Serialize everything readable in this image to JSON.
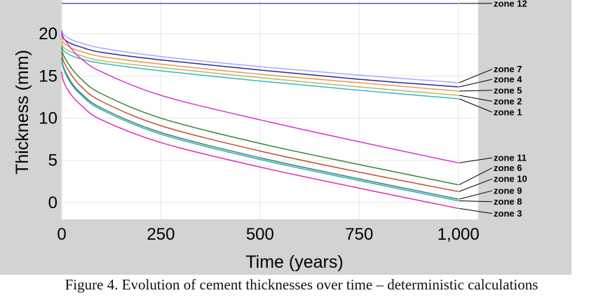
{
  "chart_data": {
    "type": "line",
    "title": "",
    "xlabel": "Time (years)",
    "ylabel": "Thickness (mm)",
    "xlim": [
      0,
      1050
    ],
    "ylim": [
      -2,
      24
    ],
    "grid": true,
    "x_ticks": [
      0,
      250,
      500,
      750,
      1000
    ],
    "x_tick_labels": [
      "0",
      "250",
      "500",
      "750",
      "1,000"
    ],
    "y_ticks": [
      0,
      5,
      10,
      15,
      20
    ],
    "y_tick_labels": [
      "0",
      "5",
      "10",
      "15",
      "20"
    ],
    "x": [
      0,
      5,
      25,
      50,
      100,
      250,
      500,
      750,
      1000
    ],
    "series": [
      {
        "name": "zone 12",
        "color": "#5050d8",
        "values": [
          23.6,
          23.6,
          23.6,
          23.6,
          23.6,
          23.6,
          23.6,
          23.6,
          23.6
        ]
      },
      {
        "name": "zone 7",
        "color": "#a8a8ff",
        "values": [
          20.5,
          19.9,
          19.3,
          18.9,
          18.3,
          17.3,
          16.1,
          15.1,
          14.2
        ]
      },
      {
        "name": "zone 4",
        "color": "#2a2a9a",
        "values": [
          20.0,
          19.4,
          18.8,
          18.4,
          17.8,
          16.9,
          15.7,
          14.6,
          13.7
        ]
      },
      {
        "name": "zone 5",
        "color": "#e89a3a",
        "values": [
          19.5,
          18.9,
          18.3,
          17.9,
          17.3,
          16.4,
          15.2,
          14.2,
          13.2
        ]
      },
      {
        "name": "zone 2",
        "color": "#b5b578",
        "values": [
          19.0,
          18.4,
          17.8,
          17.4,
          16.8,
          16.0,
          14.8,
          13.7,
          12.7
        ]
      },
      {
        "name": "zone 1",
        "color": "#38b8b8",
        "values": [
          18.6,
          18.0,
          17.4,
          17.0,
          16.5,
          15.6,
          14.4,
          13.3,
          12.3
        ]
      },
      {
        "name": "zone 11",
        "color": "#dd33cc",
        "values": [
          20.3,
          19.5,
          18.2,
          17.0,
          15.5,
          12.7,
          9.8,
          7.2,
          4.7
        ]
      },
      {
        "name": "zone 6",
        "color": "#2e8b2e",
        "values": [
          18.4,
          17.4,
          15.9,
          14.6,
          12.9,
          10.0,
          7.0,
          4.5,
          2.1
        ]
      },
      {
        "name": "zone 10",
        "color": "#c0522a",
        "values": [
          17.8,
          16.7,
          15.1,
          13.7,
          12.0,
          9.1,
          6.1,
          3.6,
          1.3
        ]
      },
      {
        "name": "zone 9",
        "color": "#308080",
        "values": [
          17.2,
          16.0,
          14.2,
          12.9,
          11.2,
          8.3,
          5.3,
          2.8,
          0.4
        ]
      },
      {
        "name": "zone 8",
        "color": "#30a8a8",
        "values": [
          17.0,
          15.8,
          14.0,
          12.7,
          11.0,
          8.1,
          5.1,
          2.6,
          0.2
        ]
      },
      {
        "name": "zone 3",
        "color": "#e02cb8",
        "values": [
          15.5,
          14.3,
          12.7,
          11.5,
          9.8,
          7.1,
          4.2,
          1.7,
          -0.7
        ]
      }
    ],
    "legend_labels": [
      {
        "name": "zone 12",
        "label_value": 23.6
      },
      {
        "name": "zone 7",
        "label_value": 15.8
      },
      {
        "name": "zone 4",
        "label_value": 14.6
      },
      {
        "name": "zone 5",
        "label_value": 13.3
      },
      {
        "name": "zone 2",
        "label_value": 12.0
      },
      {
        "name": "zone 1",
        "label_value": 10.7
      },
      {
        "name": "zone 11",
        "label_value": 5.3
      },
      {
        "name": "zone 6",
        "label_value": 4.1
      },
      {
        "name": "zone 10",
        "label_value": 2.8
      },
      {
        "name": "zone 9",
        "label_value": 1.4
      },
      {
        "name": "zone 8",
        "label_value": 0.1
      },
      {
        "name": "zone 3",
        "label_value": -1.3
      }
    ],
    "legend_placement": "right, at line ends"
  },
  "caption": "Figure 4.  Evolution of cement thicknesses over time  – deterministic calculations"
}
